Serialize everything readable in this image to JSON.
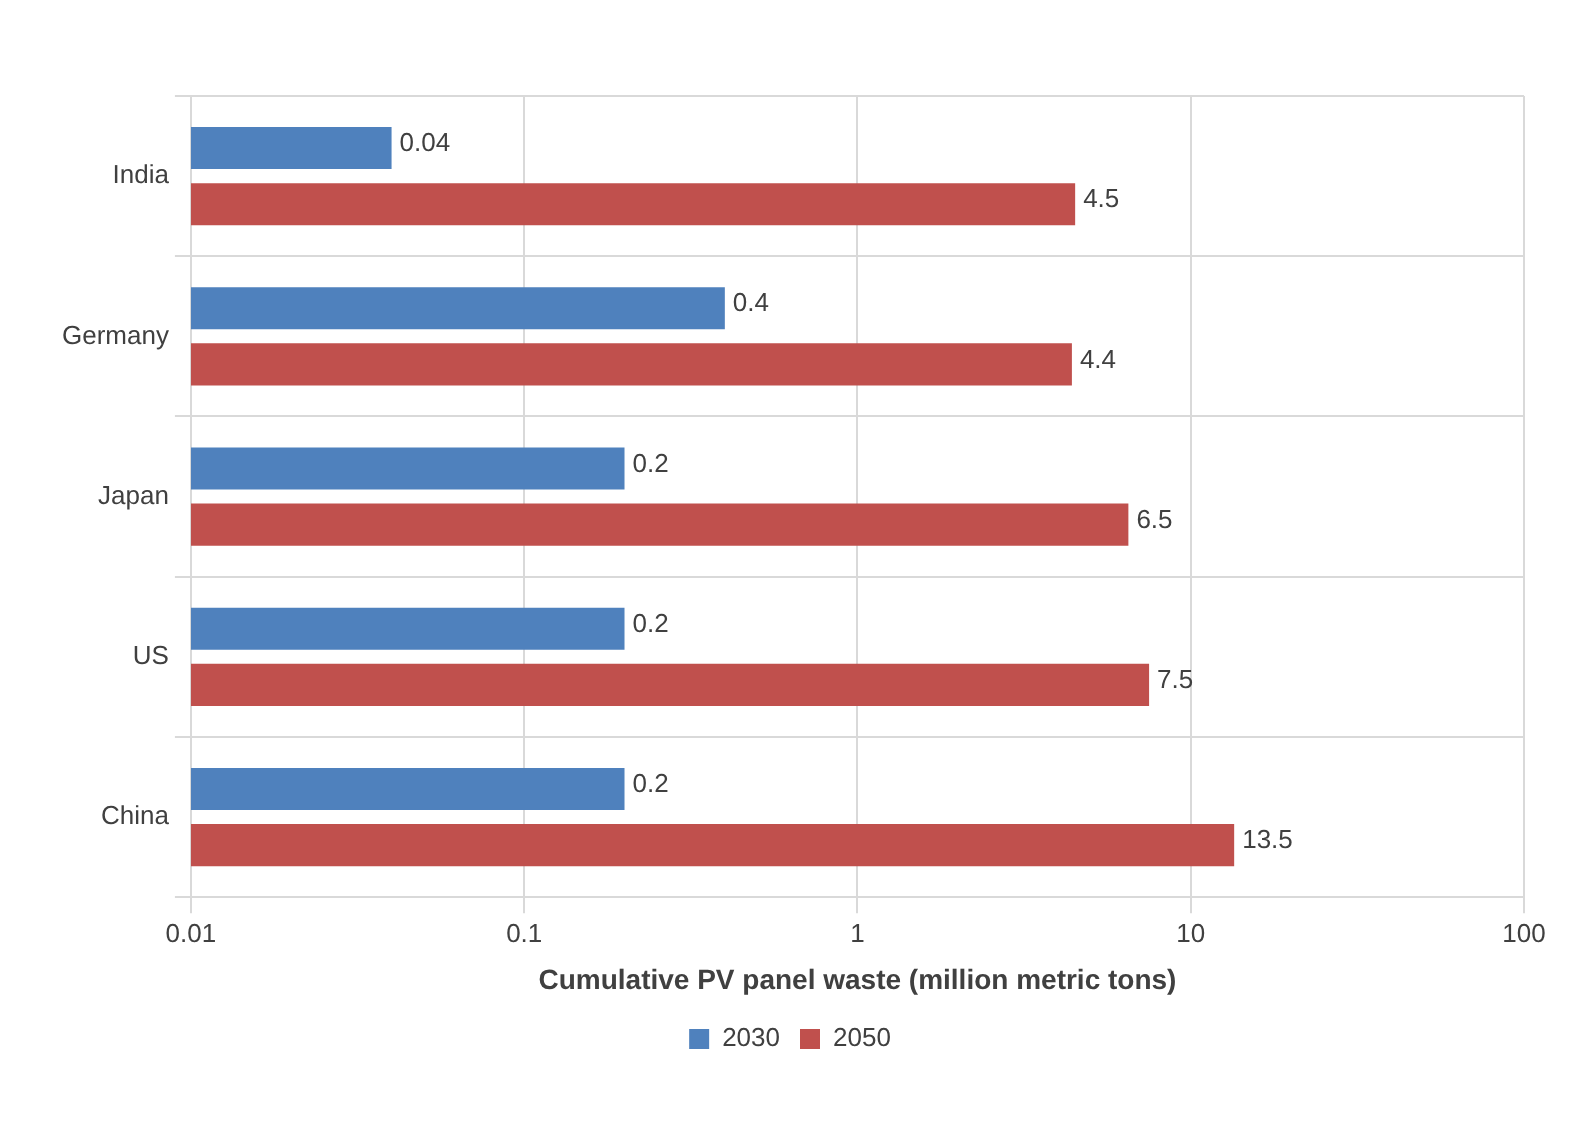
{
  "chart_data": {
    "type": "bar",
    "orientation": "horizontal",
    "categories": [
      "India",
      "Germany",
      "Japan",
      "US",
      "China"
    ],
    "series": [
      {
        "name": "2030",
        "color": "#4f81bd",
        "values": [
          0.04,
          0.4,
          0.2,
          0.2,
          0.2
        ]
      },
      {
        "name": "2050",
        "color": "#c0504d",
        "values": [
          4.5,
          4.4,
          6.5,
          7.5,
          13.5
        ]
      }
    ],
    "xlabel": "Cumulative PV panel waste (million metric tons)",
    "log": "x",
    "xlim": [
      0.01,
      100
    ],
    "xticks": [
      0.01,
      0.1,
      1,
      10,
      100
    ],
    "grid": true,
    "legend": "bottom",
    "data_labels": true
  }
}
